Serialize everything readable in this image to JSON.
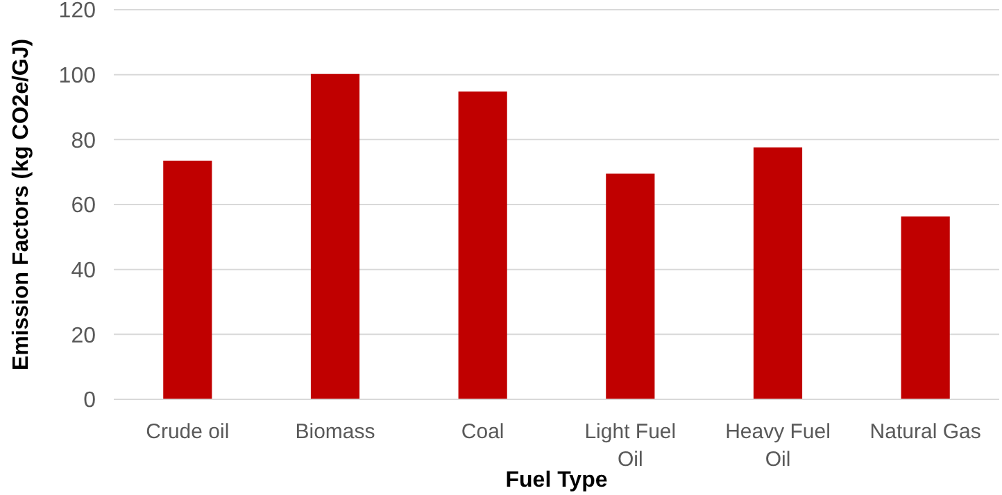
{
  "chart_data": {
    "type": "bar",
    "xlabel": "Fuel Type",
    "ylabel": "Emission Factors (kg CO2e/GJ)",
    "categories": [
      "Crude oil",
      "Biomass",
      "Coal",
      "Light Fuel Oil",
      "Heavy Fuel Oil",
      "Natural Gas"
    ],
    "values": [
      73.5,
      100.2,
      94.8,
      69.5,
      77.6,
      56.3
    ],
    "color": "#c00000",
    "ylim": [
      0,
      120
    ],
    "yticks": [
      0,
      20,
      40,
      60,
      80,
      100,
      120
    ],
    "grid": "y"
  }
}
